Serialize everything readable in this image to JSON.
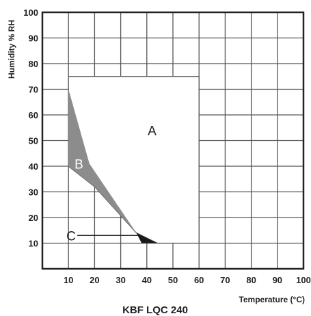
{
  "chart_data": {
    "type": "area",
    "title": "KBF LQC 240",
    "xlabel": "Temperature (°C)",
    "ylabel": "Humidity % RH",
    "xlim": [
      0,
      100
    ],
    "ylim": [
      0,
      100
    ],
    "x_ticks": [
      "10",
      "20",
      "30",
      "40",
      "50",
      "60",
      "70",
      "80",
      "90",
      "100"
    ],
    "y_ticks": [
      "10",
      "20",
      "30",
      "40",
      "50",
      "60",
      "70",
      "80",
      "90",
      "100"
    ],
    "grid": true,
    "regions": [
      {
        "name": "A",
        "fill": "#ffffff",
        "label_color": "#222222",
        "label_at": [
          42,
          54
        ],
        "points": [
          [
            10,
            75
          ],
          [
            60,
            75
          ],
          [
            60,
            10
          ],
          [
            44,
            10
          ],
          [
            36,
            14
          ],
          [
            20,
            32
          ],
          [
            10,
            40
          ],
          [
            10,
            70
          ]
        ]
      },
      {
        "name": "B",
        "fill": "#8c8c8c",
        "label_color": "#ffffff",
        "label_at": [
          14,
          41
        ],
        "points": [
          [
            10,
            70
          ],
          [
            18,
            41
          ],
          [
            36,
            14
          ],
          [
            20,
            32
          ],
          [
            10,
            40
          ]
        ]
      },
      {
        "name": "C",
        "fill": "#1a1a1a",
        "label_color": "#222222",
        "label_at": [
          11,
          13
        ],
        "leader_to": [
          37,
          13
        ],
        "points": [
          [
            36,
            14
          ],
          [
            44,
            10
          ],
          [
            38,
            10
          ]
        ]
      }
    ]
  }
}
